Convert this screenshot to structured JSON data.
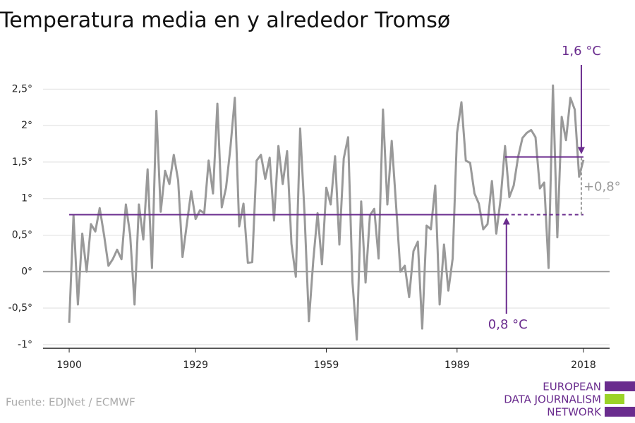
{
  "chart_data": {
    "type": "line",
    "title": "Temperatura media en y alrededor Tromsø",
    "x": [
      1900,
      1901,
      1902,
      1903,
      1904,
      1905,
      1906,
      1907,
      1908,
      1909,
      1910,
      1911,
      1912,
      1913,
      1914,
      1915,
      1916,
      1917,
      1918,
      1919,
      1920,
      1921,
      1922,
      1923,
      1924,
      1925,
      1926,
      1927,
      1928,
      1929,
      1930,
      1931,
      1932,
      1933,
      1934,
      1935,
      1936,
      1937,
      1938,
      1939,
      1940,
      1941,
      1942,
      1943,
      1944,
      1945,
      1946,
      1947,
      1948,
      1949,
      1950,
      1951,
      1952,
      1953,
      1954,
      1955,
      1956,
      1957,
      1958,
      1959,
      1960,
      1961,
      1962,
      1963,
      1964,
      1965,
      1966,
      1967,
      1968,
      1969,
      1970,
      1971,
      1972,
      1973,
      1974,
      1975,
      1976,
      1977,
      1978,
      1979,
      1980,
      1981,
      1982,
      1983,
      1984,
      1985,
      1986,
      1987,
      1988,
      1989,
      1990,
      1991,
      1992,
      1993,
      1994,
      1995,
      1996,
      1997,
      1998,
      1999,
      2000,
      2001,
      2002,
      2003,
      2004,
      2005,
      2006,
      2007,
      2008,
      2009,
      2010,
      2011,
      2012,
      2013,
      2014,
      2015,
      2016,
      2017,
      2018
    ],
    "series": [
      {
        "color": "#999999",
        "values": [
          -0.7,
          0.77,
          -0.45,
          0.52,
          0.0,
          0.65,
          0.55,
          0.87,
          0.5,
          0.08,
          0.17,
          0.3,
          0.17,
          0.92,
          0.5,
          -0.45,
          0.92,
          0.44,
          1.4,
          0.05,
          2.2,
          0.82,
          1.38,
          1.2,
          1.6,
          1.25,
          0.2,
          0.65,
          1.1,
          0.72,
          0.84,
          0.8,
          1.52,
          1.07,
          2.3,
          0.88,
          1.15,
          1.7,
          2.38,
          0.62,
          0.93,
          0.12,
          0.13,
          1.52,
          1.6,
          1.27,
          1.56,
          0.7,
          1.72,
          1.2,
          1.65,
          0.38,
          -0.07,
          1.96,
          0.8,
          -0.68,
          0.15,
          0.8,
          0.1,
          1.15,
          0.92,
          1.58,
          0.37,
          1.55,
          1.84,
          -0.15,
          -0.93,
          0.96,
          -0.15,
          0.77,
          0.86,
          0.18,
          2.22,
          0.92,
          1.79,
          0.92,
          0.0,
          0.08,
          -0.35,
          0.28,
          0.41,
          -0.78,
          0.63,
          0.58,
          1.18,
          -0.45,
          0.37,
          -0.26,
          0.18,
          1.9,
          2.32,
          1.52,
          1.49,
          1.07,
          0.93,
          0.58,
          0.65,
          1.24,
          0.52,
          1.0,
          1.72,
          1.02,
          1.18,
          1.57,
          1.83,
          1.9,
          1.94,
          1.84,
          1.14,
          1.22,
          0.05,
          2.55,
          0.47,
          2.12,
          1.8,
          2.38,
          2.22,
          1.3,
          1.53
        ]
      }
    ],
    "xlim": [
      1894,
      2024
    ],
    "xticks": [
      1900,
      1929,
      1959,
      1989,
      2018
    ],
    "ylim": [
      -1.05,
      2.6
    ],
    "yticks": [
      {
        "value": -1,
        "label": "-1°"
      },
      {
        "value": -0.5,
        "label": "-0,5°"
      },
      {
        "value": 0,
        "label": "0°"
      },
      {
        "value": 0.5,
        "label": "0,5°"
      },
      {
        "value": 1,
        "label": "1°"
      },
      {
        "value": 1.5,
        "label": "1,5°"
      },
      {
        "value": 2,
        "label": "2°"
      },
      {
        "value": 2.5,
        "label": "2,5°"
      }
    ],
    "grid": true,
    "reference_lines": [
      {
        "value": 0.78,
        "x": [
          1900,
          2018
        ],
        "dashed_from": 2000,
        "color": "#6a2c8e",
        "label": "0,8 °C"
      },
      {
        "value": 1.57,
        "x": [
          2000,
          2018
        ],
        "color": "#6a2c8e",
        "label": "1,6 °C"
      }
    ],
    "difference_label": "+0,8°",
    "source": "Fuente: EDJNet / ECMWF"
  },
  "logo": {
    "lines": [
      "EUROPEAN",
      "DATA JOURNALISM",
      "NETWORK"
    ]
  }
}
